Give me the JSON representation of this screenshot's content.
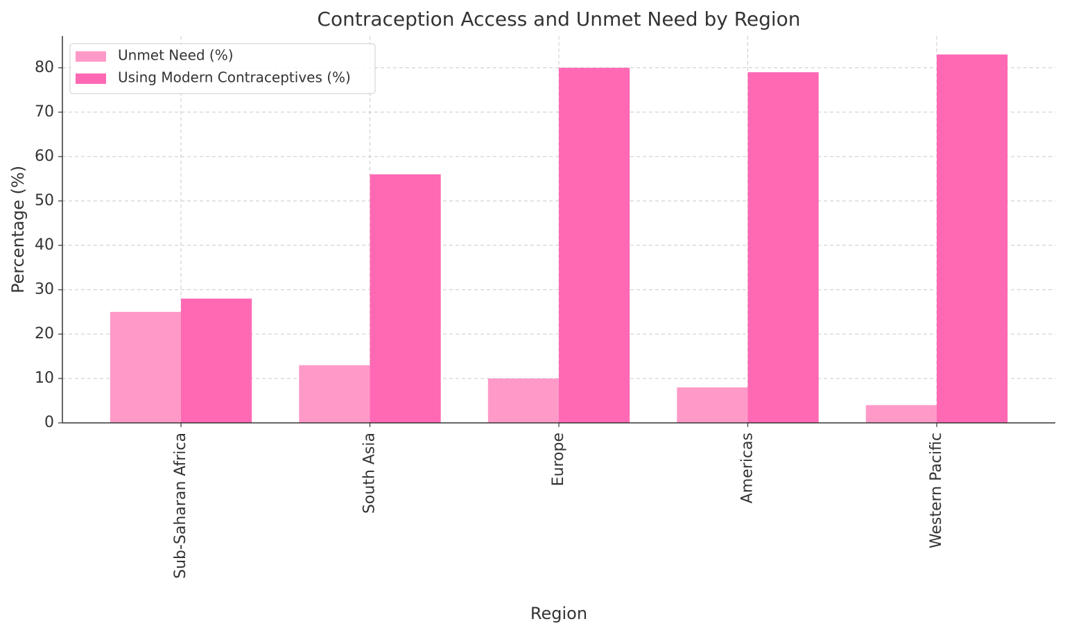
{
  "chart_data": {
    "type": "bar",
    "title": "Contraception Access and Unmet Need by Region",
    "x_label": "Region",
    "y_label": "Percentage (%)",
    "categories": [
      "Sub-Saharan Africa",
      "South Asia",
      "Europe",
      "Americas",
      "Western Pacific"
    ],
    "series": [
      {
        "name": "Unmet Need (%)",
        "color": "#ff9ac8",
        "values": [
          25,
          13,
          10,
          8,
          4
        ]
      },
      {
        "name": "Using Modern Contraceptives (%)",
        "color": "#ff69b4",
        "values": [
          28,
          56,
          80,
          79,
          83
        ]
      }
    ],
    "ylim": [
      0,
      87.15
    ],
    "yticks": [
      0,
      10,
      20,
      30,
      40,
      50,
      60,
      70,
      80
    ],
    "grid": true,
    "legend": "upper left"
  }
}
